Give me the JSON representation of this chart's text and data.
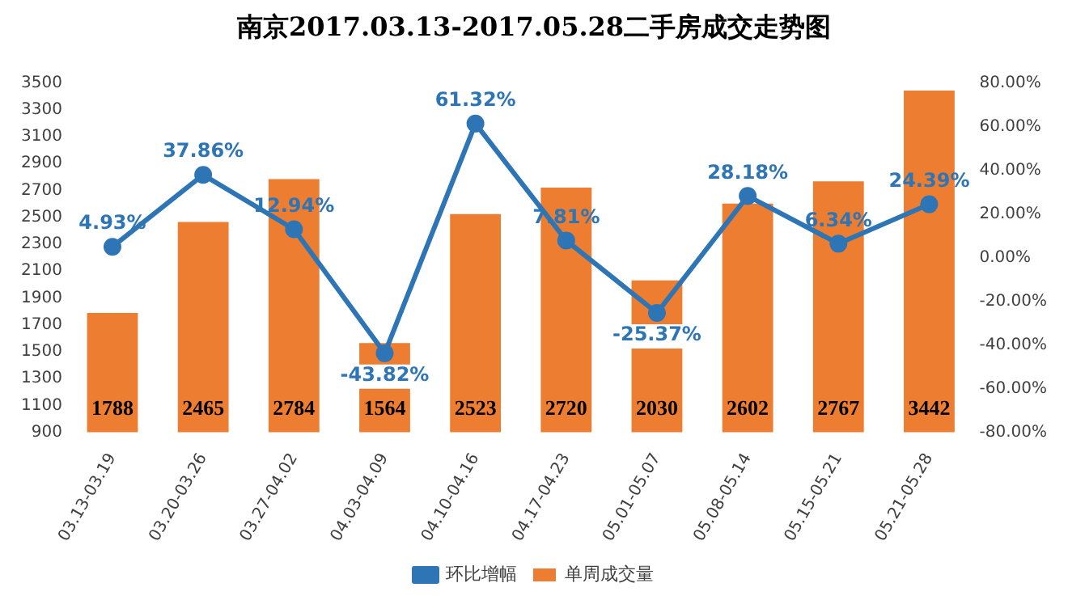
{
  "chart_data": {
    "type": "bar",
    "title": "南京2017.03.13-2017.05.28二手房成交走势图",
    "categories": [
      "03.13-03.19",
      "03.20-03.26",
      "03.27-04.02",
      "04.03-04.09",
      "04.10-04.16",
      "04.17-04.23",
      "05.01-05.07",
      "05.08-05.14",
      "05.15-05.21",
      "05.21-05.28"
    ],
    "series": [
      {
        "name": "单周成交量",
        "color": "#ed7d31",
        "values": [
          1788,
          2465,
          2784,
          1564,
          2523,
          2720,
          2030,
          2602,
          2767,
          3442
        ],
        "value_labels": [
          "1788",
          "2465",
          "2784",
          "1564",
          "2523",
          "2720",
          "2030",
          "2602",
          "2767",
          "3442"
        ]
      },
      {
        "name": "环比增幅",
        "type": "line",
        "axis": "y2",
        "color": "#2e75b6",
        "marker": "circle",
        "values": [
          4.93,
          37.86,
          12.94,
          -43.82,
          61.32,
          7.81,
          -25.37,
          28.18,
          6.34,
          24.39
        ],
        "value_labels": [
          "4.93%",
          "37.86%",
          "12.94%",
          "-43.82%",
          "61.32%",
          "7.81%",
          "-25.37%",
          "28.18%",
          "6.34%",
          "24.39%"
        ]
      }
    ],
    "ylim": [
      900,
      3500
    ],
    "yticks": [
      900,
      1100,
      1300,
      1500,
      1700,
      1900,
      2100,
      2300,
      2500,
      2700,
      2900,
      3100,
      3300,
      3500
    ],
    "y2lim": [
      -80,
      80
    ],
    "y2ticks": [
      {
        "value": -80,
        "label": "-80.00%"
      },
      {
        "value": -60,
        "label": "-60.00%"
      },
      {
        "value": -40,
        "label": "-40.00%"
      },
      {
        "value": -20,
        "label": "-20.00%"
      },
      {
        "value": 0,
        "label": "0.00%"
      },
      {
        "value": 20,
        "label": "20.00%"
      },
      {
        "value": 40,
        "label": "40.00%"
      },
      {
        "value": 60,
        "label": "60.00%"
      },
      {
        "value": 80,
        "label": "80.00%"
      }
    ],
    "grid": false,
    "legend": "bottom"
  }
}
